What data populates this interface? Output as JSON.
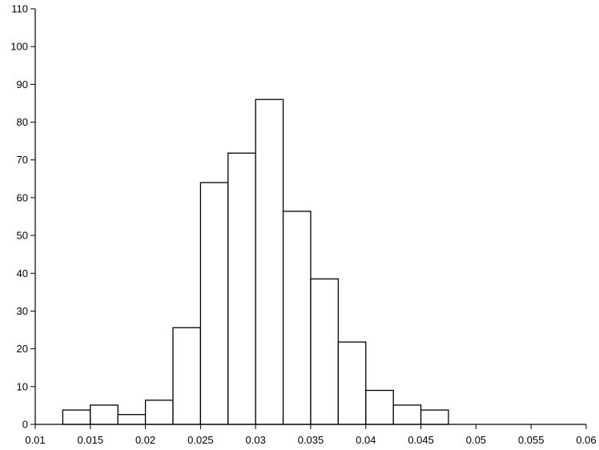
{
  "chart_data": {
    "type": "histogram",
    "bins": [
      0.0125,
      0.015,
      0.0175,
      0.02,
      0.0225,
      0.025,
      0.0275,
      0.03,
      0.0325,
      0.035,
      0.0375,
      0.04,
      0.0425,
      0.045,
      0.0475
    ],
    "values": [
      3.8,
      5.1,
      2.6,
      6.4,
      25.6,
      64,
      71.8,
      86,
      56.4,
      38.5,
      21.8,
      9,
      5.1,
      3.8
    ],
    "color": "#ffffff",
    "edgecolor": "#000000",
    "xlim": [
      0.01,
      0.06
    ],
    "xticks": [
      0.01,
      0.015,
      0.02,
      0.025,
      0.03,
      0.035,
      0.04,
      0.045,
      0.05,
      0.055,
      0.06
    ],
    "ylim": [
      0,
      110
    ],
    "yticks": [
      0,
      10,
      20,
      30,
      40,
      50,
      60,
      70,
      80,
      90,
      100,
      110
    ],
    "grid": false
  }
}
